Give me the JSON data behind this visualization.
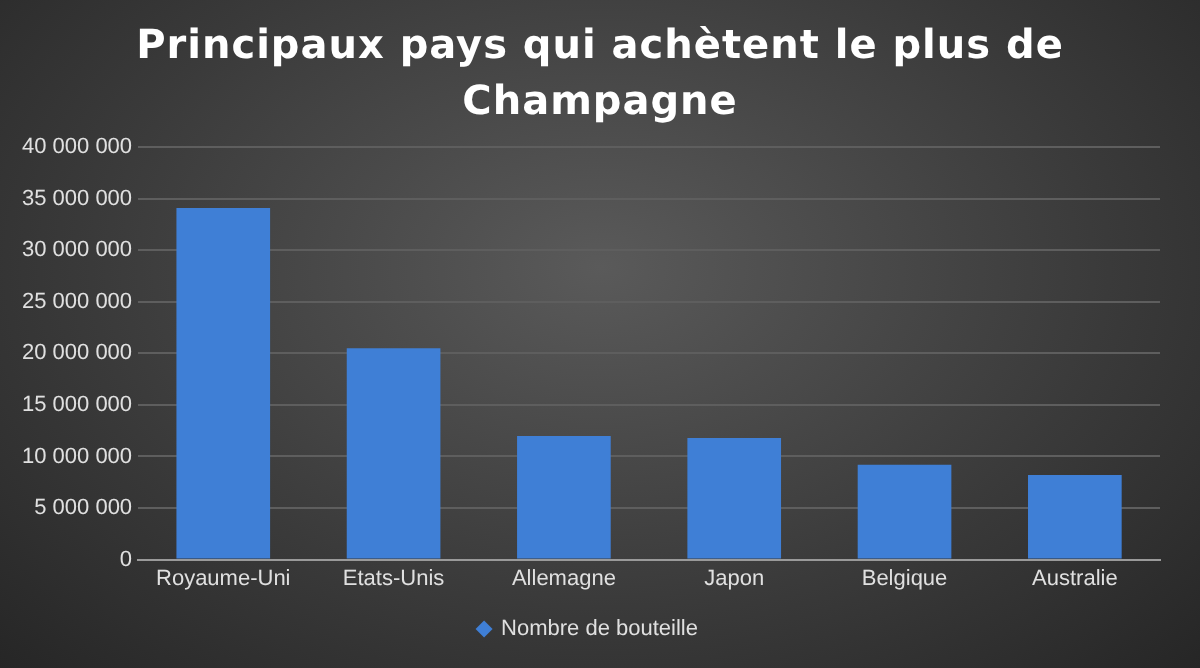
{
  "chart_data": {
    "type": "bar",
    "title": "Principaux pays qui achètent le plus de Champagne",
    "categories": [
      "Royaume-Uni",
      "Etats-Unis",
      "Allemagne",
      "Japon",
      "Belgique",
      "Australie"
    ],
    "series": [
      {
        "name": "Nombre de bouteille",
        "color": "#3f7fd6",
        "values": [
          34100000,
          20500000,
          12000000,
          11800000,
          9200000,
          8200000
        ]
      }
    ],
    "ylim": [
      0,
      40000000
    ],
    "yticks": [
      {
        "value": 0,
        "label": "0"
      },
      {
        "value": 5000000,
        "label": "5 000 000"
      },
      {
        "value": 10000000,
        "label": "10 000 000"
      },
      {
        "value": 15000000,
        "label": "15 000 000"
      },
      {
        "value": 20000000,
        "label": "20 000 000"
      },
      {
        "value": 25000000,
        "label": "25 000 000"
      },
      {
        "value": 30000000,
        "label": "30 000 000"
      },
      {
        "value": 35000000,
        "label": "35 000 000"
      },
      {
        "value": 40000000,
        "label": "40 000 000"
      }
    ],
    "grid": "y",
    "legend": "bottom"
  }
}
